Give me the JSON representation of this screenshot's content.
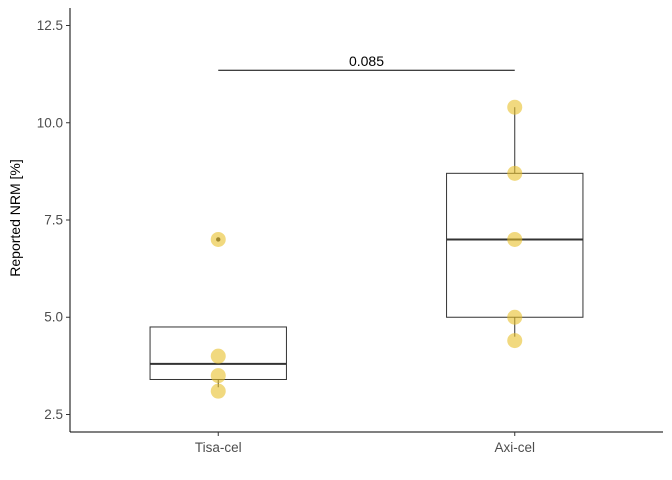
{
  "chart_data": {
    "type": "box",
    "title": "",
    "xlabel": "",
    "ylabel": "Reported NRM [%]",
    "ylim": [
      2.05,
      12.95
    ],
    "yticks": [
      2.5,
      5.0,
      7.5,
      10.0,
      12.5
    ],
    "ytick_labels": [
      "2.5",
      "5.0",
      "7.5",
      "10.0",
      "12.5"
    ],
    "grid": false,
    "point_color": "#E8C02A",
    "categories": [
      "Tisa-cel",
      "Axi-cel"
    ],
    "boxes": [
      {
        "category": "Tisa-cel",
        "lower_whisker": 3.2,
        "q1": 3.4,
        "median": 3.8,
        "q3": 4.75,
        "upper_whisker": 4.75,
        "outliers": [
          7.0
        ]
      },
      {
        "category": "Axi-cel",
        "lower_whisker": 4.5,
        "q1": 5.0,
        "median": 7.0,
        "q3": 8.7,
        "upper_whisker": 10.4,
        "outliers": []
      }
    ],
    "points": [
      {
        "category": "Tisa-cel",
        "values": [
          3.1,
          3.5,
          4.0,
          7.0
        ]
      },
      {
        "category": "Axi-cel",
        "values": [
          4.4,
          5.0,
          7.0,
          8.7,
          10.4
        ]
      }
    ],
    "annotations": [
      {
        "text": "0.085",
        "type": "significance-bracket",
        "from": "Tisa-cel",
        "to": "Axi-cel",
        "y": 11.35
      }
    ]
  }
}
